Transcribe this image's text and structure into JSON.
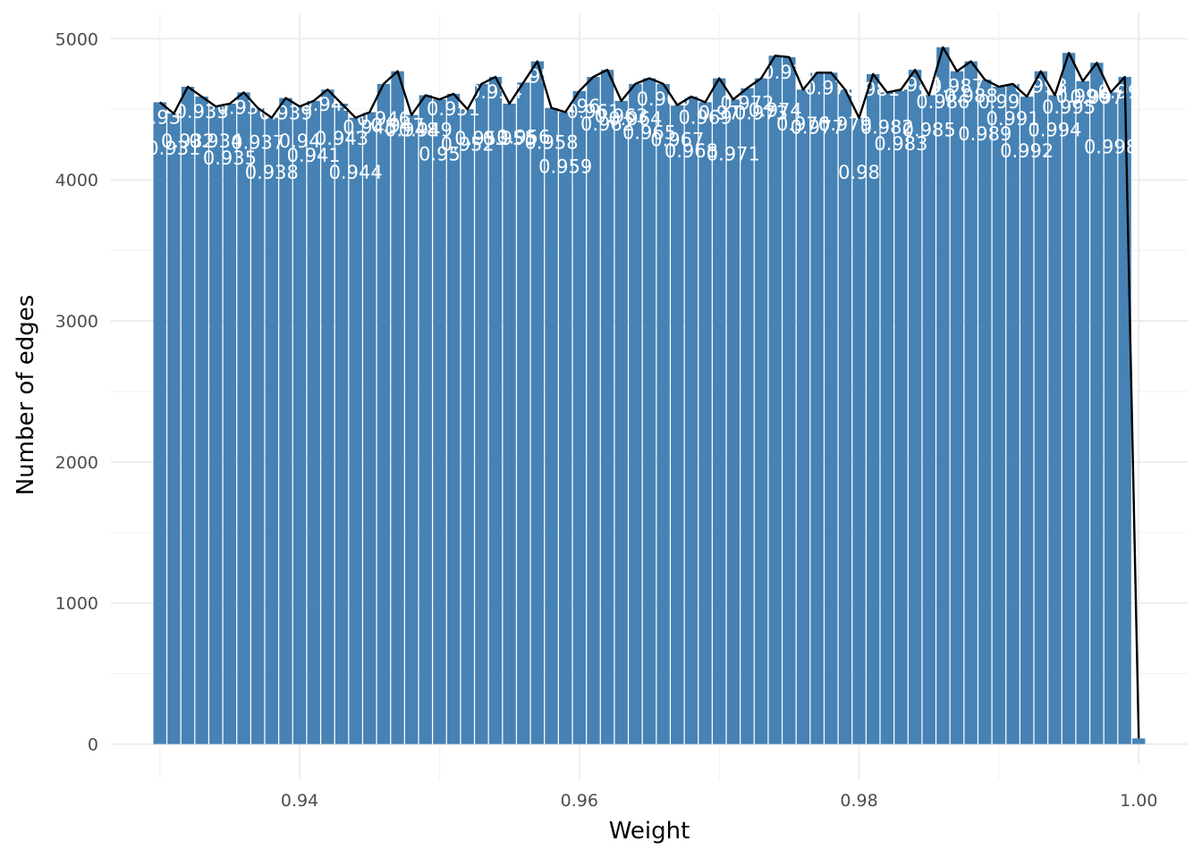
{
  "chart_data": {
    "type": "bar",
    "title": "",
    "xlabel": "Weight",
    "ylabel": "Number of edges",
    "xlim": [
      0.9265,
      1.0035
    ],
    "ylim": [
      -250,
      5180
    ],
    "x_ticks": [
      "0.94",
      "0.96",
      "0.98",
      "1.00"
    ],
    "y_ticks": [
      "0",
      "1000",
      "2000",
      "3000",
      "4000",
      "5000"
    ],
    "grid": true,
    "legend": "none",
    "colors": {
      "bar": "#4682b4",
      "line": "#000000",
      "label": "#ffffff"
    },
    "series": [
      {
        "x": [
          0.93,
          0.931,
          0.932,
          0.933,
          0.934,
          0.935,
          0.936,
          0.937,
          0.938,
          0.939,
          0.94,
          0.941,
          0.942,
          0.943,
          0.944,
          0.945,
          0.946,
          0.947,
          0.948,
          0.949,
          0.95,
          0.951,
          0.952,
          0.953,
          0.954,
          0.955,
          0.956,
          0.957,
          0.958,
          0.959,
          0.96,
          0.961,
          0.962,
          0.963,
          0.964,
          0.965,
          0.966,
          0.967,
          0.968,
          0.969,
          0.97,
          0.971,
          0.972,
          0.973,
          0.974,
          0.975,
          0.976,
          0.977,
          0.978,
          0.979,
          0.98,
          0.981,
          0.982,
          0.983,
          0.984,
          0.985,
          0.986,
          0.987,
          0.988,
          0.989,
          0.99,
          0.991,
          0.992,
          0.993,
          0.994,
          0.995,
          0.996,
          0.997,
          0.998,
          0.999,
          1.0
        ],
        "values": [
          4550,
          4470,
          4660,
          4590,
          4520,
          4540,
          4620,
          4510,
          4440,
          4580,
          4520,
          4560,
          4640,
          4540,
          4440,
          4480,
          4680,
          4770,
          4460,
          4600,
          4570,
          4610,
          4500,
          4680,
          4730,
          4540,
          4690,
          4840,
          4510,
          4480,
          4630,
          4730,
          4780,
          4560,
          4680,
          4720,
          4680,
          4530,
          4590,
          4550,
          4720,
          4570,
          4650,
          4720,
          4880,
          4870,
          4640,
          4760,
          4760,
          4640,
          4440,
          4750,
          4620,
          4640,
          4780,
          4600,
          4940,
          4770,
          4840,
          4710,
          4660,
          4680,
          4590,
          4770,
          4600,
          4900,
          4700,
          4830,
          4620,
          4730,
          40
        ],
        "labels": [
          "0.93",
          "0.931",
          "0.932",
          "0.933",
          "0.934",
          "0.935",
          "0.936",
          "0.937",
          "0.938",
          "0.939",
          "0.94",
          "0.941",
          "0.942",
          "0.943",
          "0.944",
          "0.945",
          "0.946",
          "0.947",
          "0.948",
          "0.949",
          "0.95",
          "0.951",
          "0.952",
          "0.953",
          "0.954",
          "0.955",
          "0.956",
          "0.957",
          "0.958",
          "0.959",
          "0.96",
          "0.961",
          "0.962",
          "0.963",
          "0.964",
          "0.965",
          "0.966",
          "0.967",
          "0.968",
          "0.969",
          "0.97",
          "0.971",
          "0.972",
          "0.973",
          "0.974",
          "0.975",
          "0.976",
          "0.977",
          "0.978",
          "0.979",
          "0.98",
          "0.981",
          "0.982",
          "0.983",
          "0.984",
          "0.985",
          "0.986",
          "0.987",
          "0.988",
          "0.989",
          "0.99",
          "0.991",
          "0.992",
          "0.993",
          "0.994",
          "0.995",
          "0.996",
          "0.997",
          "0.998",
          "0.999",
          "1"
        ]
      }
    ]
  }
}
